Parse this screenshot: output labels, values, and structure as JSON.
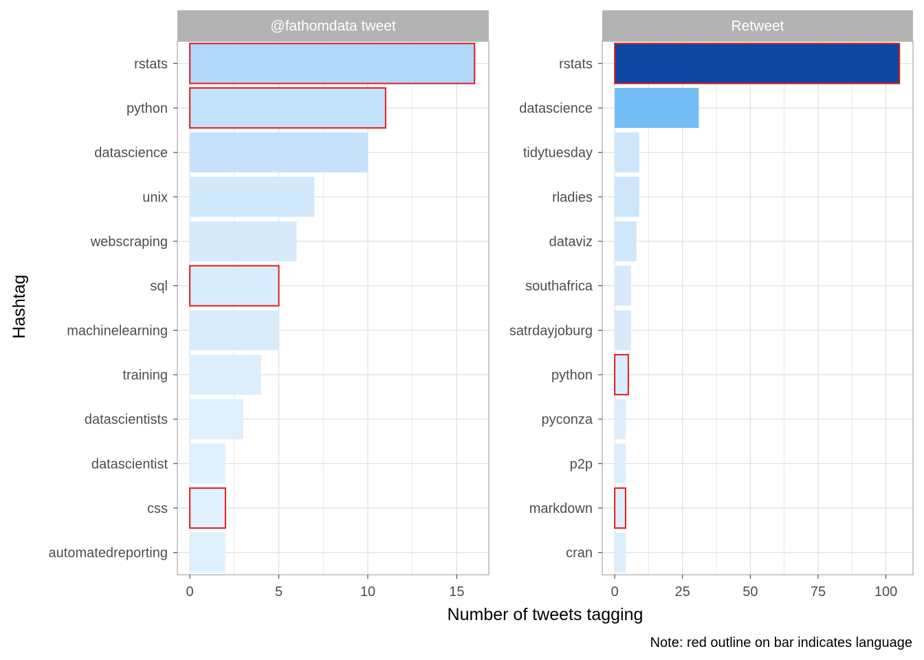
{
  "chart_data": {
    "type": "bar",
    "orientation": "horizontal",
    "xlabel": "Number of tweets tagging",
    "ylabel": "Hashtag",
    "caption": "Note: red outline on bar indicates language",
    "grid": true,
    "colors": {
      "outline": "#e31a1c",
      "strip": "#b3b3b3",
      "grid": "#dedede",
      "panel_border": "#b3b3b3",
      "fill_low": "#e3f0fd",
      "fill_mid": "#73bdf7",
      "fill_high": "#0d47a1"
    },
    "panels": [
      {
        "title": "@fathomdata tweet",
        "xlim": [
          -0.7,
          16.8
        ],
        "xticks": [
          0,
          5,
          10,
          15
        ],
        "categories": [
          "rstats",
          "python",
          "datascience",
          "unix",
          "webscraping",
          "sql",
          "machinelearning",
          "training",
          "datascientists",
          "datascientist",
          "css",
          "automatedreporting"
        ],
        "values": [
          16,
          11,
          10,
          7,
          6,
          5,
          5,
          4,
          3,
          2,
          2,
          2
        ],
        "language": [
          true,
          true,
          false,
          false,
          false,
          true,
          false,
          false,
          false,
          false,
          true,
          false
        ],
        "fill_colors": [
          "#b1d7fb",
          "#c3e1fb",
          "#c6e2fb",
          "#d2e9fc",
          "#d6eafc",
          "#d9ecfc",
          "#d9ecfc",
          "#ddeefc",
          "#dfeffc",
          "#e1f0fd",
          "#e1f0fd",
          "#e1f0fd"
        ]
      },
      {
        "title": "Retweet",
        "xlim": [
          -4.6,
          110
        ],
        "xticks": [
          0,
          25,
          50,
          75,
          100
        ],
        "categories": [
          "rstats",
          "datascience",
          "tidytuesday",
          "rladies",
          "dataviz",
          "southafrica",
          "satrdayjoburg",
          "python",
          "pyconza",
          "p2p",
          "markdown",
          "cran"
        ],
        "values": [
          105,
          31,
          9,
          9,
          8,
          6,
          6,
          5,
          4,
          4,
          4,
          4
        ],
        "language": [
          true,
          false,
          false,
          false,
          false,
          false,
          false,
          true,
          false,
          false,
          true,
          false
        ],
        "fill_colors": [
          "#0d47a1",
          "#73bdf7",
          "#cde6fc",
          "#cde6fc",
          "#d0e7fc",
          "#d6eafc",
          "#d6eafc",
          "#d9ecfc",
          "#dcedfc",
          "#dcedfc",
          "#dcedfc",
          "#dcedfc"
        ]
      }
    ]
  }
}
